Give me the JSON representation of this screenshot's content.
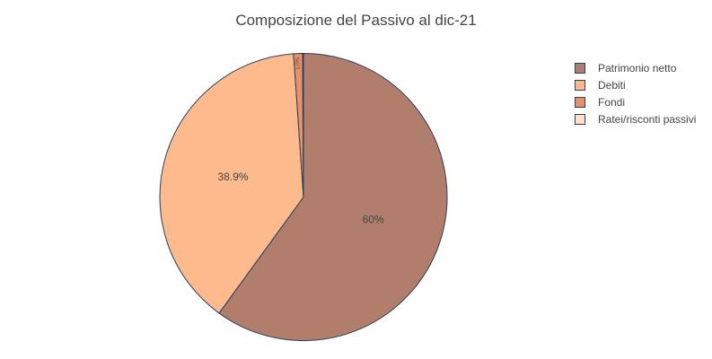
{
  "chart_data": {
    "type": "pie",
    "title": "Composizione del Passivo al dic-21",
    "labels": [
      "Patrimonio netto",
      "Debiti",
      "Fondi",
      "Ratei/risconti passivi"
    ],
    "values": [
      60.0,
      38.9,
      1.0,
      0.1
    ],
    "value_labels": [
      "60%",
      "38.9%",
      "1.0%",
      ""
    ],
    "colors": [
      "#b07e6a",
      "#fdba8c",
      "#e8916b",
      "#fde0c5"
    ],
    "border_color": "#2a3f5f",
    "start": "12 o'clock",
    "direction": "clockwise",
    "legend_position": "top-right"
  }
}
